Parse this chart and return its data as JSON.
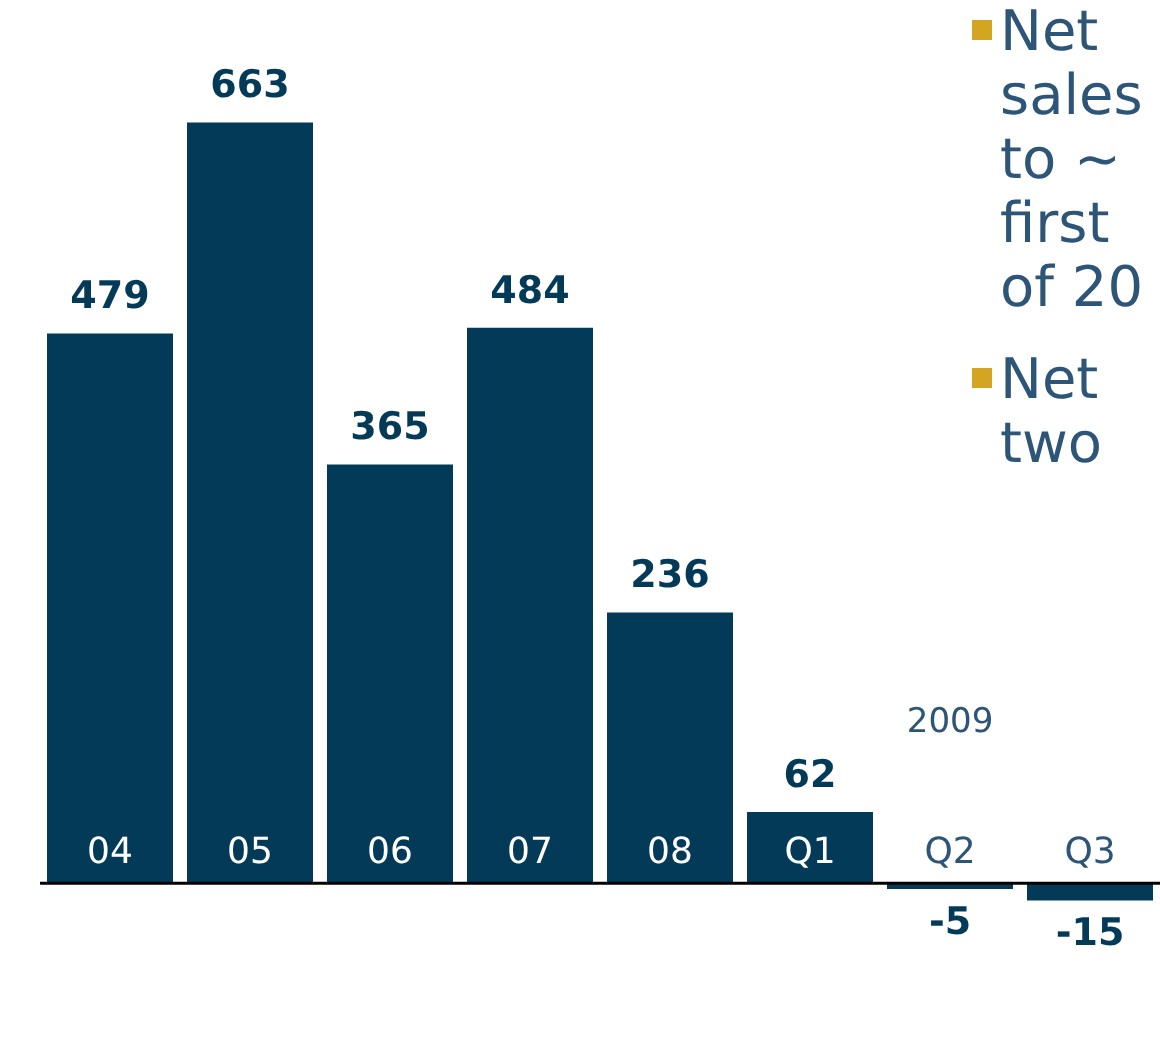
{
  "chart_data": {
    "type": "bar",
    "categories": [
      "04",
      "05",
      "06",
      "07",
      "08",
      "Q1",
      "Q2",
      "Q3"
    ],
    "values": [
      479,
      663,
      365,
      484,
      236,
      62,
      -5,
      -15
    ],
    "color": "#033a58",
    "data_labels": true,
    "annotations": [
      "Net sales to ~ first of 20",
      "Net two",
      "2009"
    ]
  }
}
